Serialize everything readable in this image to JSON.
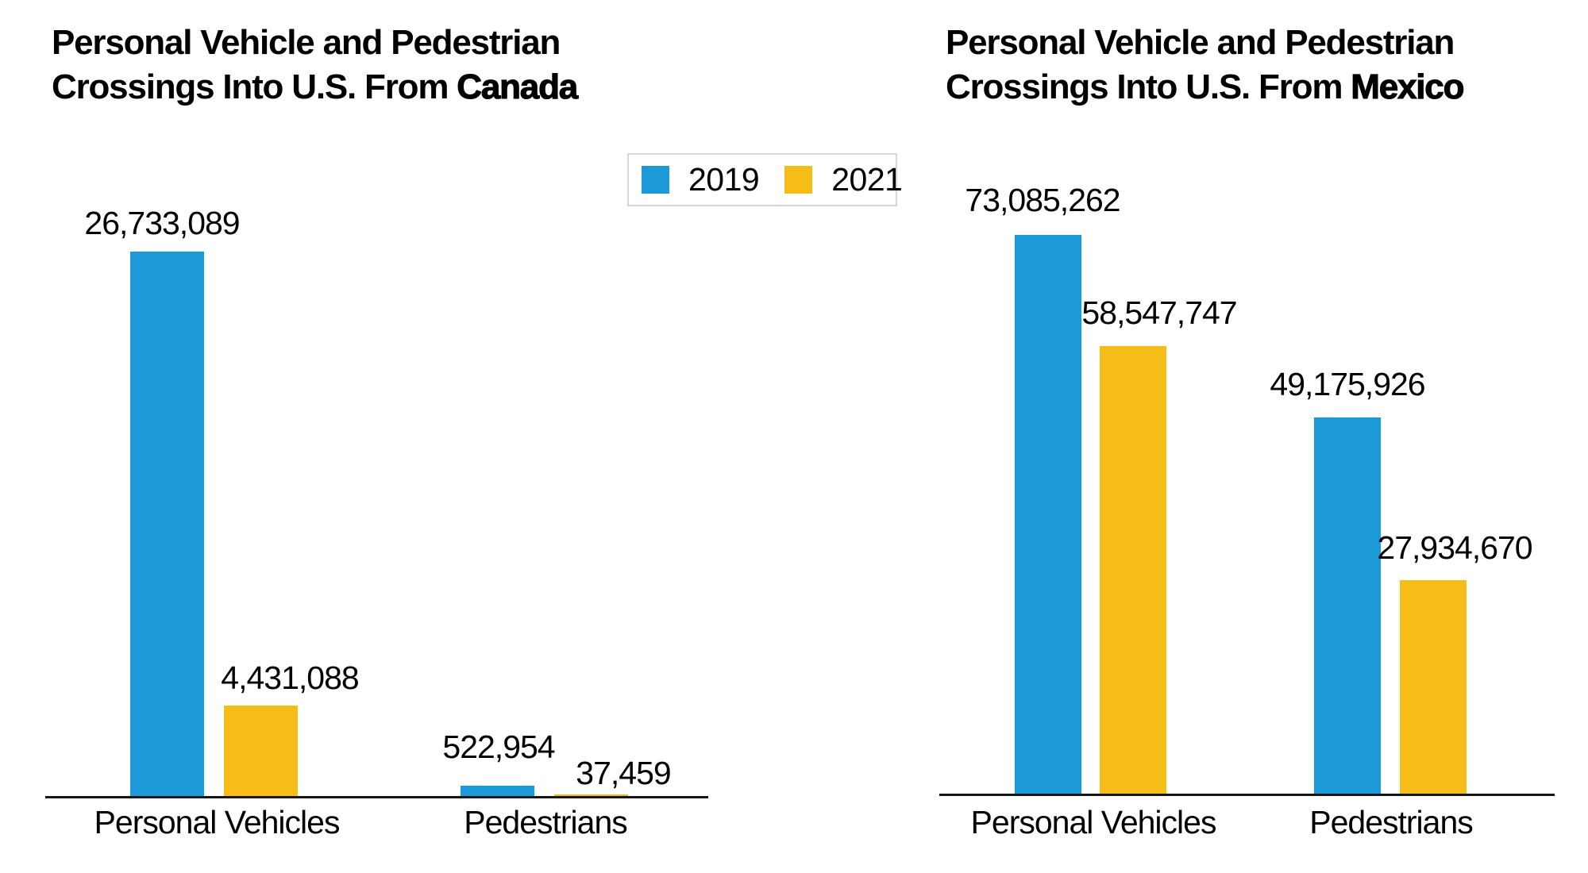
{
  "legend": {
    "position": "top-center",
    "items": [
      {
        "label": "2019",
        "color": "#1B9AD7"
      },
      {
        "label": "2021",
        "color": "#F6BC17"
      }
    ]
  },
  "chart_data": [
    {
      "id": "canada",
      "type": "bar",
      "title": "Personal Vehicle and Pedestrian Crossings Into U.S. From Canada",
      "title_line1": "Personal Vehicle and Pedestrian",
      "title_line2_prefix": "Crossings Into U.S. From",
      "title_emphasis": "Canada",
      "categories": [
        "Personal Vehicles",
        "Pedestrians"
      ],
      "series": [
        {
          "name": "2019",
          "values": [
            26733089,
            522954
          ],
          "labels": [
            "26,733,089",
            "522,954"
          ]
        },
        {
          "name": "2021",
          "values": [
            4431088,
            37459
          ],
          "labels": [
            "4,431,088",
            "37,459"
          ]
        }
      ],
      "ylim": [
        0,
        26733089
      ],
      "grid": false,
      "value_axis": "hidden",
      "legend_position": "top-right"
    },
    {
      "id": "mexico",
      "type": "bar",
      "title": "Personal Vehicle and Pedestrian Crossings Into U.S. From Mexico",
      "title_line1": "Personal Vehicle and Pedestrian",
      "title_line2_prefix": "Crossings Into U.S. From",
      "title_emphasis": "Mexico",
      "categories": [
        "Personal Vehicles",
        "Pedestrians"
      ],
      "series": [
        {
          "name": "2019",
          "values": [
            73085262,
            49175926
          ],
          "labels": [
            "73,085,262",
            "49,175,926"
          ]
        },
        {
          "name": "2021",
          "values": [
            58547747,
            27934670
          ],
          "labels": [
            "58,547,747",
            "27,934,670"
          ]
        }
      ],
      "ylim": [
        0,
        73085262
      ],
      "grid": false,
      "value_axis": "hidden",
      "legend_position": "shared"
    }
  ]
}
